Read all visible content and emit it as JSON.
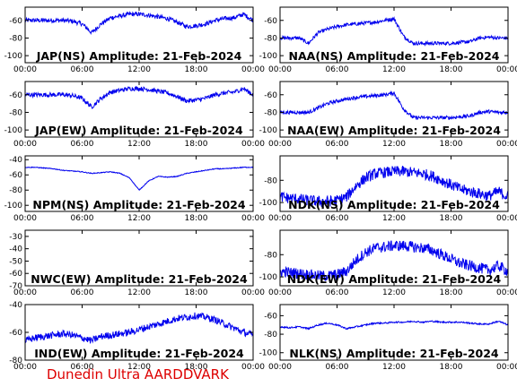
{
  "footer": {
    "credit": "Dunedin Ultra AARDDVARK"
  },
  "colors": {
    "trace": "#0000ee",
    "axes": "#000000",
    "credit": "#dd0000"
  },
  "chart_data": [
    {
      "type": "line",
      "title": "JAP(NS) Amplitude: 21-Feb-2024",
      "xticks": [
        "00:00",
        "06:00",
        "12:00",
        "18:00",
        "00:00"
      ],
      "yticks": [
        "-60",
        "-80",
        "-100"
      ],
      "ylim": [
        -108,
        -45
      ],
      "xlim": [
        0,
        24
      ],
      "noise": 2.5,
      "x": [
        0,
        1,
        2,
        3,
        4,
        5,
        6,
        7,
        8,
        9,
        10,
        11,
        12,
        13,
        14,
        15,
        16,
        17,
        18,
        19,
        20,
        21,
        22,
        23,
        24
      ],
      "y": [
        -60,
        -60,
        -60,
        -60,
        -60,
        -61,
        -64,
        -74,
        -64,
        -57,
        -55,
        -53,
        -53,
        -54,
        -56,
        -58,
        -62,
        -67,
        -66,
        -64,
        -60,
        -58,
        -57,
        -53,
        -60
      ]
    },
    {
      "type": "line",
      "title": "NAA(NS) Amplitude: 21-Feb-2024",
      "xticks": [
        "00:00",
        "06:00",
        "12:00",
        "18:00",
        "00:00"
      ],
      "yticks": [
        "-60",
        "-80",
        "-100"
      ],
      "ylim": [
        -108,
        -45
      ],
      "xlim": [
        0,
        24
      ],
      "noise": 2,
      "x": [
        0,
        1,
        2,
        3,
        4,
        5,
        6,
        7,
        8,
        9,
        10,
        11,
        12,
        13,
        14,
        15,
        16,
        17,
        18,
        19,
        20,
        21,
        22,
        23,
        24
      ],
      "y": [
        -80,
        -80,
        -80,
        -86,
        -74,
        -70,
        -67,
        -65,
        -64,
        -63,
        -62,
        -60,
        -58,
        -78,
        -86,
        -86,
        -86,
        -86,
        -86,
        -85,
        -84,
        -80,
        -79,
        -80,
        -80
      ]
    },
    {
      "type": "line",
      "title": "JAP(EW) Amplitude: 21-Feb-2024",
      "xticks": [
        "00:00",
        "06:00",
        "12:00",
        "18:00",
        "00:00"
      ],
      "yticks": [
        "-60",
        "-80",
        "-100"
      ],
      "ylim": [
        -108,
        -45
      ],
      "xlim": [
        0,
        24
      ],
      "noise": 2.5,
      "x": [
        0,
        1,
        2,
        3,
        4,
        5,
        6,
        7,
        8,
        9,
        10,
        11,
        12,
        13,
        14,
        15,
        16,
        17,
        18,
        19,
        20,
        21,
        22,
        23,
        24
      ],
      "y": [
        -60,
        -60,
        -60,
        -60,
        -60,
        -61,
        -64,
        -74,
        -64,
        -57,
        -55,
        -53,
        -53,
        -54,
        -56,
        -58,
        -62,
        -67,
        -66,
        -64,
        -60,
        -58,
        -57,
        -53,
        -60
      ]
    },
    {
      "type": "line",
      "title": "NAA(EW) Amplitude: 21-Feb-2024",
      "xticks": [
        "00:00",
        "06:00",
        "12:00",
        "18:00",
        "00:00"
      ],
      "yticks": [
        "-60",
        "-80",
        "-100"
      ],
      "ylim": [
        -108,
        -45
      ],
      "xlim": [
        0,
        24
      ],
      "noise": 2,
      "x": [
        0,
        1,
        2,
        3,
        4,
        5,
        6,
        7,
        8,
        9,
        10,
        11,
        12,
        13,
        14,
        15,
        16,
        17,
        18,
        19,
        20,
        21,
        22,
        23,
        24
      ],
      "y": [
        -80,
        -80,
        -80,
        -80,
        -75,
        -70,
        -67,
        -65,
        -63,
        -62,
        -61,
        -60,
        -58,
        -76,
        -86,
        -86,
        -86,
        -86,
        -86,
        -85,
        -84,
        -80,
        -79,
        -80,
        -80
      ]
    },
    {
      "type": "line",
      "title": "NPM(NS) Amplitude: 21-Feb-2024",
      "xticks": [
        "00:00",
        "06:00",
        "12:00",
        "18:00",
        "00:00"
      ],
      "yticks": [
        "-40",
        "-60",
        "-80",
        "-100"
      ],
      "ylim": [
        -108,
        -35
      ],
      "xlim": [
        0,
        24
      ],
      "noise": 0.5,
      "x": [
        0,
        1,
        2,
        3,
        4,
        5,
        6,
        7,
        8,
        9,
        10,
        11,
        12,
        13,
        14,
        15,
        16,
        17,
        18,
        19,
        20,
        21,
        22,
        23,
        24
      ],
      "y": [
        -50,
        -50,
        -51,
        -52,
        -54,
        -55,
        -56,
        -58,
        -57,
        -56,
        -58,
        -64,
        -80,
        -68,
        -62,
        -63,
        -62,
        -58,
        -56,
        -54,
        -52,
        -52,
        -51,
        -50,
        -50
      ]
    },
    {
      "type": "line",
      "title": "NDK(NS) Amplitude: 21-Feb-2024",
      "xticks": [
        "00:00",
        "06:00",
        "12:00",
        "18:00",
        "00:00"
      ],
      "yticks": [
        "-80",
        "-100"
      ],
      "ylim": [
        -108,
        -58
      ],
      "xlim": [
        0,
        24
      ],
      "noise": 5,
      "x": [
        0,
        1,
        2,
        3,
        4,
        5,
        6,
        7,
        8,
        9,
        10,
        11,
        12,
        13,
        14,
        15,
        16,
        17,
        18,
        19,
        20,
        21,
        22,
        23,
        24
      ],
      "y": [
        -95,
        -96,
        -97,
        -98,
        -99,
        -99,
        -98,
        -95,
        -85,
        -78,
        -74,
        -73,
        -72,
        -72,
        -73,
        -74,
        -76,
        -80,
        -84,
        -88,
        -90,
        -92,
        -94,
        -90,
        -95
      ]
    },
    {
      "type": "line",
      "title": "NWC(EW) Amplitude: 21-Feb-2024",
      "xticks": [
        "00:00",
        "06:00",
        "12:00",
        "18:00",
        "00:00"
      ],
      "yticks": [
        "-30",
        "-40",
        "-50",
        "-60",
        "-70"
      ],
      "ylim": [
        -70,
        -25
      ],
      "xlim": [
        0,
        24
      ],
      "noise": 0,
      "x": [],
      "y": []
    },
    {
      "type": "line",
      "title": "NDK(EW) Amplitude: 21-Feb-2024",
      "xticks": [
        "00:00",
        "06:00",
        "12:00",
        "18:00",
        "00:00"
      ],
      "yticks": [
        "-80",
        "-100"
      ],
      "ylim": [
        -108,
        -58
      ],
      "xlim": [
        0,
        24
      ],
      "noise": 5,
      "x": [
        0,
        1,
        2,
        3,
        4,
        5,
        6,
        7,
        8,
        9,
        10,
        11,
        12,
        13,
        14,
        15,
        16,
        17,
        18,
        19,
        20,
        21,
        22,
        23,
        24
      ],
      "y": [
        -95,
        -96,
        -97,
        -98,
        -99,
        -99,
        -98,
        -95,
        -85,
        -78,
        -74,
        -73,
        -72,
        -72,
        -73,
        -74,
        -76,
        -80,
        -84,
        -88,
        -90,
        -92,
        -94,
        -90,
        -95
      ]
    },
    {
      "type": "line",
      "title": "IND(EW) Amplitude: 21-Feb-2024",
      "xticks": [
        "00:00",
        "06:00",
        "12:00",
        "18:00",
        "00:00"
      ],
      "yticks": [
        "-40",
        "-60",
        "-80"
      ],
      "ylim": [
        -80,
        -40
      ],
      "xlim": [
        0,
        24
      ],
      "noise": 2.5,
      "x": [
        0,
        1,
        2,
        3,
        4,
        5,
        6,
        7,
        8,
        9,
        10,
        11,
        12,
        13,
        14,
        15,
        16,
        17,
        18,
        19,
        20,
        21,
        22,
        23,
        24
      ],
      "y": [
        -66,
        -64,
        -63,
        -62,
        -61,
        -62,
        -64,
        -66,
        -63,
        -62,
        -61,
        -60,
        -58,
        -56,
        -54,
        -52,
        -50,
        -49,
        -48,
        -49,
        -51,
        -54,
        -57,
        -60,
        -62
      ]
    },
    {
      "type": "line",
      "title": "NLK(NS) Amplitude: 21-Feb-2024",
      "xticks": [
        "00:00",
        "06:00",
        "12:00",
        "18:00",
        "00:00"
      ],
      "yticks": [
        "-60",
        "-80",
        "-100"
      ],
      "ylim": [
        -108,
        -48
      ],
      "xlim": [
        0,
        24
      ],
      "noise": 0.8,
      "x": [
        0,
        1,
        2,
        3,
        4,
        5,
        6,
        7,
        8,
        9,
        10,
        11,
        12,
        13,
        14,
        15,
        16,
        17,
        18,
        19,
        20,
        21,
        22,
        23,
        24
      ],
      "y": [
        -72,
        -73,
        -72,
        -74,
        -70,
        -68,
        -70,
        -74,
        -72,
        -70,
        -68,
        -68,
        -67,
        -67,
        -66,
        -67,
        -66,
        -67,
        -67,
        -67,
        -68,
        -69,
        -69,
        -66,
        -70
      ]
    }
  ]
}
